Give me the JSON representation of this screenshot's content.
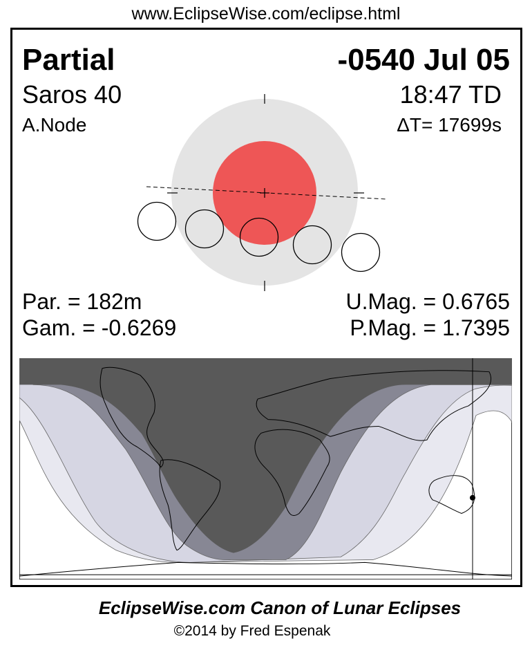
{
  "url": "www.EclipseWise.com/eclipse.html",
  "header": {
    "eclipse_type": "Partial",
    "date": "-0540 Jul 05",
    "saros": "Saros  40",
    "time": "18:47 TD",
    "node": "A.Node",
    "delta_t": "ΔT=  17699s"
  },
  "parameters": {
    "par": "Par. = 182m",
    "gam": "Gam. = -0.6269",
    "umag": "U.Mag. = 0.6765",
    "pmag": "P.Mag. = 1.7395"
  },
  "colors": {
    "penumbra": "#e4e4e4",
    "umbra": "#ee5656",
    "map_umbral_full": "#595959",
    "map_umbral_partial": "#878794",
    "map_penumbral": "#d6d6e3",
    "map_penumbral_outer": "#e8e8f0"
  },
  "footer": {
    "title": "EclipseWise.com Canon of Lunar Eclipses",
    "copyright": "©2014 by Fred Espenak"
  }
}
